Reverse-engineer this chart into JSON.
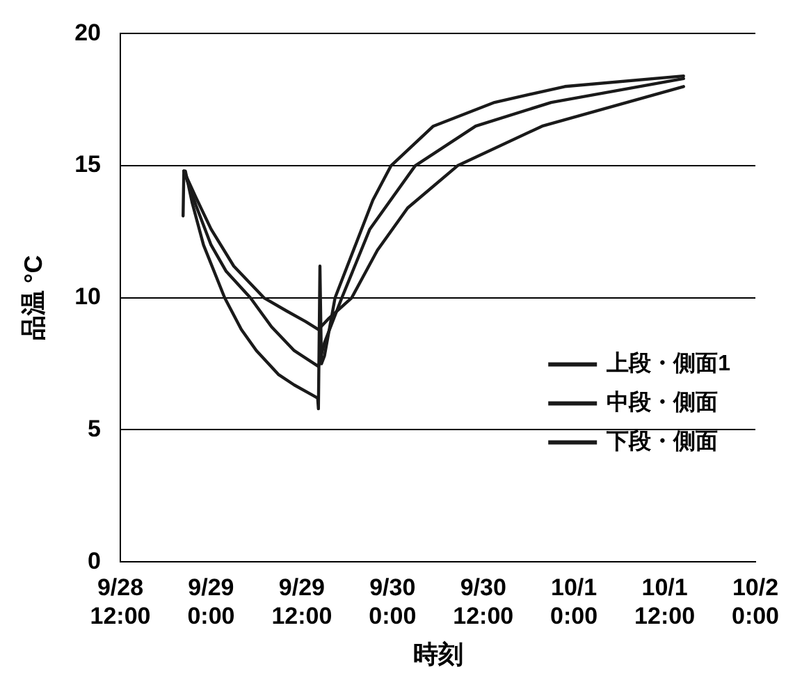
{
  "chart_data": {
    "type": "line",
    "xlabel": "時刻",
    "ylabel": "品温 °C",
    "xlim": [
      "--09-28T12:00",
      "--10-02T00:00"
    ],
    "xticks": [
      {
        "value": "--09-28T12:00",
        "label": "9/28\n12:00"
      },
      {
        "value": "--09-29T00:00",
        "label": "9/29\n0:00"
      },
      {
        "value": "--09-29T12:00",
        "label": "9/29\n12:00"
      },
      {
        "value": "--09-30T00:00",
        "label": "9/30\n0:00"
      },
      {
        "value": "--09-30T12:00",
        "label": "9/30\n12:00"
      },
      {
        "value": "--10-01T00:00",
        "label": "10/1\n0:00"
      },
      {
        "value": "--10-01T12:00",
        "label": "10/1\n12:00"
      },
      {
        "value": "--10-02T00:00",
        "label": "10/2\n0:00"
      }
    ],
    "ylim": [
      0,
      20
    ],
    "yticks": [
      0,
      5,
      10,
      15,
      20
    ],
    "grid": "y",
    "legend": "bottom right",
    "marker": "none",
    "line_style": "solid",
    "series": [
      {
        "name": "上段・側面1",
        "color": "#1a1a1a",
        "x": [
          "--09-28T20:18",
          "--09-28T20:24",
          "--09-28T20:36",
          "--09-28T21:30",
          "--09-28T23:00",
          "--09-29T01:48",
          "--09-29T04:00",
          "--09-29T06:00",
          "--09-29T08:54",
          "--09-29T11:00",
          "--09-29T13:30",
          "--09-29T14:06",
          "--09-29T14:12",
          "--09-29T14:24",
          "--09-29T14:36",
          "--09-29T15:00",
          "--09-29T16:24",
          "--09-29T21:24",
          "--09-29T23:48",
          "--09-30T05:24",
          "--09-30T13:30",
          "--09-30T22:48",
          "--10-01T14:30"
        ],
        "values": [
          13.1,
          14.8,
          14.8,
          13.6,
          12,
          10,
          8.8,
          8,
          7.1,
          6.7,
          6.3,
          6.2,
          5.8,
          11.2,
          7.5,
          7.8,
          10,
          13.7,
          15,
          16.5,
          17.4,
          18,
          18.4
        ]
      },
      {
        "name": "中段・側面",
        "color": "#1a1a1a",
        "x": [
          "--09-28T20:24",
          "--09-28T22:00",
          "--09-29T00:00",
          "--09-29T02:00",
          "--09-29T05:12",
          "--09-29T08:00",
          "--09-29T11:00",
          "--09-29T14:12",
          "--09-29T15:00",
          "--09-29T17:18",
          "--09-29T21:00",
          "--09-30T03:00",
          "--09-30T11:00",
          "--09-30T21:00",
          "--10-01T14:30"
        ],
        "values": [
          14.8,
          13.5,
          12,
          11,
          10,
          8.9,
          8,
          7.4,
          8.3,
          10,
          12.6,
          15,
          16.5,
          17.4,
          18.3
        ]
      },
      {
        "name": "下段・側面",
        "color": "#1a1a1a",
        "x": [
          "--09-28T20:24",
          "--09-28T22:00",
          "--09-29T00:00",
          "--09-29T03:00",
          "--09-29T07:00",
          "--09-29T10:00",
          "--09-29T12:30",
          "--09-29T14:12",
          "--09-29T15:30",
          "--09-29T18:36",
          "--09-29T22:00",
          "--09-30T02:00",
          "--09-30T08:36",
          "--09-30T19:48",
          "--10-01T07:00",
          "--10-01T14:30"
        ],
        "values": [
          14.8,
          13.8,
          12.6,
          11.2,
          10,
          9.5,
          9.1,
          8.8,
          9.2,
          10,
          11.8,
          13.4,
          15,
          16.5,
          17.4,
          18
        ]
      }
    ]
  }
}
